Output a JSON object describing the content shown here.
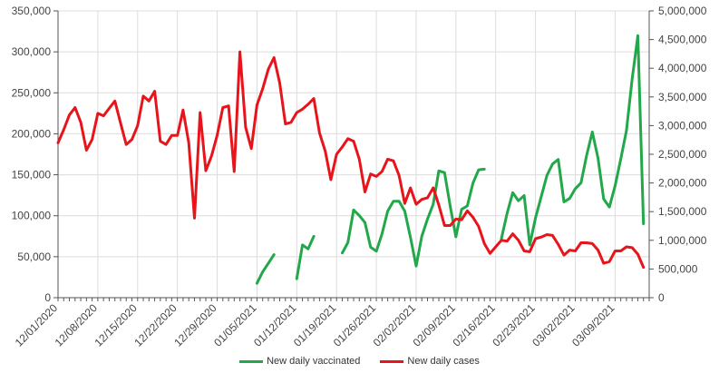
{
  "chart_data": {
    "type": "line",
    "dual_axis": true,
    "grid": true,
    "legend_position": "bottom",
    "x_tick_labels": [
      "12/01/2020",
      "12/08/2020",
      "12/15/2020",
      "12/22/2020",
      "12/29/2020",
      "01/05/2021",
      "01/12/2021",
      "01/19/2021",
      "01/26/2021",
      "02/02/2021",
      "02/09/2021",
      "02/16/2021",
      "02/23/2021",
      "03/02/2021",
      "03/09/2021"
    ],
    "x_range_days": [
      0,
      104
    ],
    "y_left": {
      "range": [
        0,
        350000
      ],
      "tick_labels": [
        "0",
        "50,000",
        "100,000",
        "150,000",
        "200,000",
        "250,000",
        "300,000",
        "350,000"
      ]
    },
    "y_right": {
      "range": [
        0,
        5000000
      ],
      "tick_labels": [
        "0",
        "500,000",
        "1,000,000",
        "1,500,000",
        "2,000,000",
        "2,500,000",
        "3,000,000",
        "3,500,000",
        "4,000,000",
        "4,500,000",
        "5,000,000"
      ]
    },
    "series": [
      {
        "name": "New daily vaccinated",
        "color": "#22a84a",
        "axis": "right",
        "segments": [
          [
            [
              35,
              250000
            ],
            [
              36,
              450000
            ],
            [
              37,
              600000
            ],
            [
              38,
              750000
            ]
          ],
          [
            [
              42,
              330000
            ],
            [
              43,
              920000
            ],
            [
              44,
              850000
            ],
            [
              45,
              1070000
            ]
          ],
          [
            [
              50,
              780000
            ],
            [
              51,
              960000
            ],
            [
              52,
              1530000
            ],
            [
              53,
              1430000
            ],
            [
              54,
              1310000
            ],
            [
              55,
              880000
            ],
            [
              56,
              810000
            ],
            [
              57,
              1110000
            ],
            [
              58,
              1510000
            ],
            [
              59,
              1680000
            ],
            [
              60,
              1680000
            ],
            [
              61,
              1510000
            ],
            [
              62,
              1050000
            ],
            [
              63,
              550000
            ],
            [
              64,
              1070000
            ],
            [
              65,
              1370000
            ],
            [
              66,
              1630000
            ],
            [
              67,
              2210000
            ],
            [
              68,
              2180000
            ],
            [
              69,
              1590000
            ],
            [
              70,
              1060000
            ],
            [
              71,
              1540000
            ],
            [
              72,
              1600000
            ],
            [
              73,
              2000000
            ],
            [
              74,
              2230000
            ],
            [
              75,
              2240000
            ]
          ],
          [
            [
              78,
              1030000
            ],
            [
              79,
              1470000
            ],
            [
              80,
              1830000
            ],
            [
              81,
              1690000
            ],
            [
              82,
              1780000
            ],
            [
              83,
              920000
            ],
            [
              84,
              1390000
            ],
            [
              85,
              1760000
            ],
            [
              86,
              2130000
            ],
            [
              87,
              2330000
            ],
            [
              88,
              2410000
            ],
            [
              89,
              1670000
            ],
            [
              90,
              1730000
            ],
            [
              91,
              1900000
            ],
            [
              92,
              2000000
            ],
            [
              93,
              2480000
            ],
            [
              94,
              2890000
            ],
            [
              95,
              2430000
            ],
            [
              96,
              1720000
            ],
            [
              97,
              1580000
            ],
            [
              98,
              1950000
            ],
            [
              99,
              2420000
            ],
            [
              100,
              2910000
            ],
            [
              101,
              3810000
            ],
            [
              102,
              4570000
            ],
            [
              103,
              1290000
            ]
          ]
        ]
      },
      {
        "name": "New daily cases",
        "color": "#e8141c",
        "axis": "left",
        "segments": [
          [
            [
              0,
              189000
            ],
            [
              1,
              205000
            ],
            [
              2,
              223000
            ],
            [
              3,
              232000
            ],
            [
              4,
              214000
            ],
            [
              5,
              180000
            ],
            [
              6,
              193000
            ],
            [
              7,
              225000
            ],
            [
              8,
              222000
            ],
            [
              9,
              231000
            ],
            [
              10,
              240000
            ],
            [
              11,
              213000
            ],
            [
              12,
              187000
            ],
            [
              13,
              193000
            ],
            [
              14,
              210000
            ],
            [
              15,
              246000
            ],
            [
              16,
              240000
            ],
            [
              17,
              252000
            ],
            [
              18,
              191000
            ],
            [
              19,
              187000
            ],
            [
              20,
              198000
            ],
            [
              21,
              198000
            ],
            [
              22,
              229000
            ],
            [
              23,
              189000
            ],
            [
              24,
              97000
            ],
            [
              25,
              226000
            ],
            [
              26,
              155000
            ],
            [
              27,
              173000
            ],
            [
              28,
              198000
            ],
            [
              29,
              232000
            ],
            [
              30,
              234000
            ],
            [
              31,
              154000
            ],
            [
              32,
              300000
            ],
            [
              33,
              208000
            ],
            [
              34,
              182000
            ],
            [
              35,
              235000
            ],
            [
              36,
              255000
            ],
            [
              37,
              279000
            ],
            [
              38,
              293000
            ],
            [
              39,
              262000
            ],
            [
              40,
              212000
            ],
            [
              41,
              214000
            ],
            [
              42,
              226000
            ],
            [
              43,
              230000
            ],
            [
              44,
              236000
            ],
            [
              45,
              243000
            ],
            [
              46,
              201000
            ],
            [
              47,
              179000
            ],
            [
              48,
              144000
            ],
            [
              49,
              175000
            ],
            [
              50,
              184000
            ],
            [
              51,
              194000
            ],
            [
              52,
              191000
            ],
            [
              53,
              169000
            ],
            [
              54,
              129000
            ],
            [
              55,
              151000
            ],
            [
              56,
              148000
            ],
            [
              57,
              154000
            ],
            [
              58,
              169000
            ],
            [
              59,
              167000
            ],
            [
              60,
              149000
            ],
            [
              61,
              115000
            ],
            [
              62,
              134000
            ],
            [
              63,
              114000
            ],
            [
              64,
              120000
            ],
            [
              65,
              122000
            ],
            [
              66,
              134000
            ],
            [
              67,
              113000
            ],
            [
              68,
              88000
            ],
            [
              69,
              88000
            ],
            [
              70,
              96000
            ],
            [
              71,
              95000
            ],
            [
              72,
              106000
            ],
            [
              73,
              98000
            ],
            [
              74,
              87000
            ],
            [
              75,
              66000
            ],
            [
              76,
              54000
            ],
            [
              77,
              62000
            ],
            [
              78,
              70000
            ],
            [
              79,
              69000
            ],
            [
              80,
              78000
            ],
            [
              81,
              70000
            ],
            [
              82,
              57000
            ],
            [
              83,
              56000
            ],
            [
              84,
              72000
            ],
            [
              85,
              74000
            ],
            [
              86,
              77000
            ],
            [
              87,
              76000
            ],
            [
              88,
              65000
            ],
            [
              89,
              52000
            ],
            [
              90,
              58000
            ],
            [
              91,
              57000
            ],
            [
              92,
              67000
            ],
            [
              93,
              67000
            ],
            [
              94,
              66000
            ],
            [
              95,
              58000
            ],
            [
              96,
              42000
            ],
            [
              97,
              44000
            ],
            [
              98,
              57000
            ],
            [
              99,
              57000
            ],
            [
              100,
              62000
            ],
            [
              101,
              61000
            ],
            [
              102,
              53000
            ],
            [
              103,
              37000
            ]
          ]
        ]
      }
    ]
  }
}
